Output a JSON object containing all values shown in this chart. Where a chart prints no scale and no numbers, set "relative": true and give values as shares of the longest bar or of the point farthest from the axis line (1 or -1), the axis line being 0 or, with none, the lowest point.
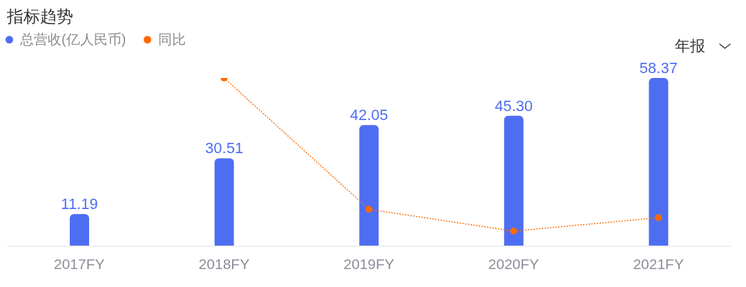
{
  "chart_data": [
    {
      "type": "bar",
      "title": "指标趋势",
      "categories": [
        "2017FY",
        "2018FY",
        "2019FY",
        "2020FY",
        "2021FY"
      ],
      "series": [
        {
          "name": "总营收(亿人民币)",
          "color": "#4e6ef2",
          "values": [
            11.19,
            30.51,
            42.05,
            45.3,
            58.37
          ],
          "value_labels": [
            "11.19",
            "30.51",
            "42.05",
            "45.30",
            "58.37"
          ]
        }
      ],
      "legend": "top left",
      "tick_labels": "x",
      "annotations": [
        "年报"
      ]
    },
    {
      "type": "line",
      "categories": [
        null,
        null,
        null,
        null,
        null
      ],
      "series": [
        {
          "name": "同比",
          "color": "#ff6a00",
          "values": [
            null,
            1,
            0.22,
            0.09,
            0.17
          ]
        }
      ],
      "relative": true,
      "marker": "circle",
      "line_style": "dotted",
      "legend": "top left",
      "tick_labels": false
    }
  ]
}
